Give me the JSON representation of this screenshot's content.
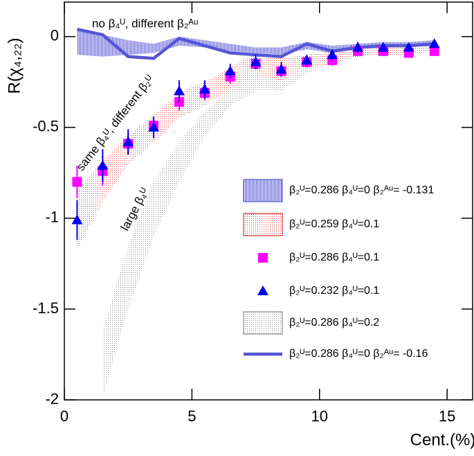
{
  "chart_data": {
    "type": "band",
    "ylabel": "R(χ₄,₂₂)",
    "xlabel": "Cent.(%)",
    "annotations": [
      "no β₄ᵁ, different β₂ᴬᵘ",
      "same β₄ᵁ, different β₂ᵁ",
      "large β₄ᵁ"
    ],
    "xlim": [
      0,
      16
    ],
    "ylim": [
      -2,
      0.19
    ],
    "xticks": [
      0,
      5,
      10,
      15
    ],
    "yticks": [
      -2,
      -1.5,
      -1,
      -0.5,
      0
    ],
    "x": [
      0.5,
      1.5,
      2.5,
      3.5,
      4.5,
      5.5,
      6.5,
      7.5,
      8.5,
      9.5,
      10.5,
      11.5,
      12.5,
      13.5,
      14.5
    ],
    "series": [
      {
        "name": "β₂ᵁ=0.286 β₄ᵁ=0 β₂ᴬᵘ= -0.131",
        "type": "band",
        "color": "#5555d5",
        "pattern": "hatch",
        "low": [
          -0.1,
          -0.11,
          -0.1,
          -0.09,
          -0.05,
          -0.06,
          -0.08,
          -0.09,
          -0.1,
          -0.07,
          -0.09,
          -0.07,
          -0.06,
          -0.06,
          -0.05
        ],
        "high": [
          0.03,
          0.01,
          -0.02,
          -0.04,
          0.0,
          -0.02,
          -0.04,
          -0.06,
          -0.06,
          -0.03,
          -0.05,
          -0.04,
          -0.03,
          -0.03,
          -0.02
        ]
      },
      {
        "name": "β₂ᵁ=0.259 β₄ᵁ=0.1",
        "type": "band",
        "color": "#e03030",
        "pattern": "dots",
        "low": [
          -1.17,
          -0.91,
          -0.7,
          -0.58,
          -0.45,
          -0.38,
          -0.29,
          -0.22,
          -0.24,
          -0.18,
          -0.15,
          -0.11,
          -0.1,
          -0.1,
          -0.08
        ],
        "high": [
          -0.85,
          -0.68,
          -0.55,
          -0.43,
          -0.31,
          -0.25,
          -0.17,
          -0.09,
          -0.12,
          -0.1,
          -0.08,
          -0.04,
          -0.05,
          -0.05,
          -0.04
        ]
      },
      {
        "name": "β₂ᵁ=0.286 β₄ᵁ=0.1",
        "type": "markers",
        "marker": "square",
        "color": "#ff00ff",
        "values": [
          -0.8,
          -0.74,
          -0.59,
          -0.49,
          -0.36,
          -0.31,
          -0.22,
          -0.15,
          -0.19,
          -0.14,
          -0.13,
          -0.08,
          -0.08,
          -0.09,
          -0.08
        ],
        "errors": [
          0.09,
          0.08,
          0.06,
          0.05,
          0.05,
          0.04,
          0.04,
          0.03,
          0.03,
          0.03,
          0.03,
          0.02,
          0.02,
          0.02,
          0.02
        ]
      },
      {
        "name": "β₂ᵁ=0.232 β₄ᵁ=0.1",
        "type": "markers",
        "marker": "triangle",
        "color": "#0000ee",
        "values": [
          -1.01,
          -0.71,
          -0.58,
          -0.5,
          -0.3,
          -0.29,
          -0.19,
          -0.14,
          -0.18,
          -0.13,
          -0.1,
          -0.06,
          -0.06,
          -0.06,
          -0.04
        ],
        "errors": [
          0.11,
          0.09,
          0.07,
          0.06,
          0.06,
          0.05,
          0.04,
          0.04,
          0.04,
          0.03,
          0.03,
          0.03,
          0.02,
          0.02,
          0.02
        ]
      },
      {
        "name": "β₂ᵁ=0.286 β₄ᵁ=0.2",
        "type": "band",
        "color": "#888888",
        "pattern": "dots",
        "low": [
          null,
          -1.98,
          -1.5,
          -1.1,
          -0.8,
          -0.55,
          -0.38,
          -0.3,
          -0.3,
          -0.2,
          -0.15,
          -0.11,
          -0.1,
          -0.1,
          -0.08
        ],
        "high": [
          null,
          -1.62,
          -1.15,
          -0.8,
          -0.58,
          -0.42,
          -0.28,
          -0.2,
          -0.18,
          -0.14,
          -0.1,
          -0.06,
          -0.06,
          -0.06,
          -0.05
        ]
      },
      {
        "name": "β₂ᵁ=0.286 β₄ᵁ=0 β₂ᴬᵘ= -0.16",
        "type": "line",
        "color": "#5555d5",
        "values": [
          0.04,
          0.01,
          -0.11,
          -0.12,
          -0.01,
          -0.05,
          -0.09,
          -0.1,
          -0.11,
          -0.04,
          -0.08,
          -0.06,
          -0.05,
          -0.05,
          -0.04
        ]
      }
    ]
  }
}
